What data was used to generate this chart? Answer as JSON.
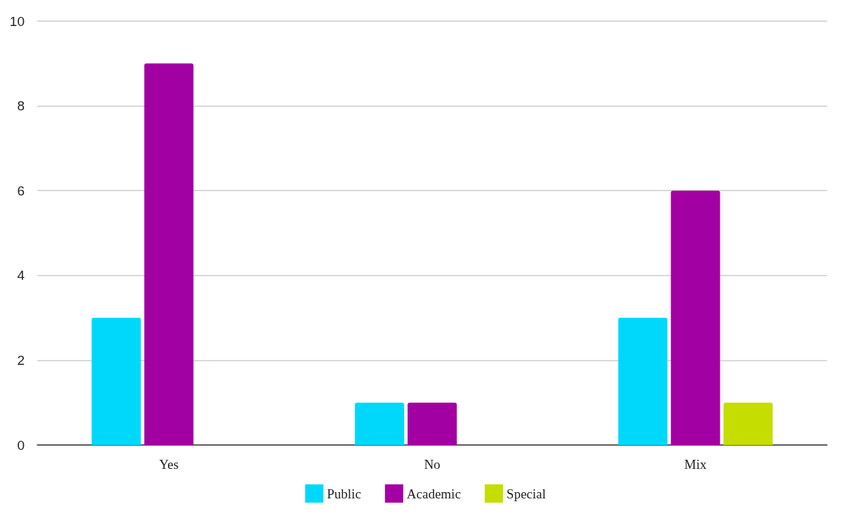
{
  "chart_data": {
    "type": "bar",
    "categories": [
      "Yes",
      "No",
      "Mix"
    ],
    "series": [
      {
        "name": "Public",
        "color": "#00d8fb",
        "values": [
          3,
          1,
          3
        ]
      },
      {
        "name": "Academic",
        "color": "#a300a3",
        "values": [
          9,
          1,
          6
        ]
      },
      {
        "name": "Special",
        "color": "#c5dd00",
        "values": [
          null,
          null,
          1
        ]
      }
    ],
    "ylim": [
      0,
      10
    ],
    "yticks": [
      0,
      2,
      4,
      6,
      8,
      10
    ],
    "grid": "y",
    "legend": "bottom"
  }
}
